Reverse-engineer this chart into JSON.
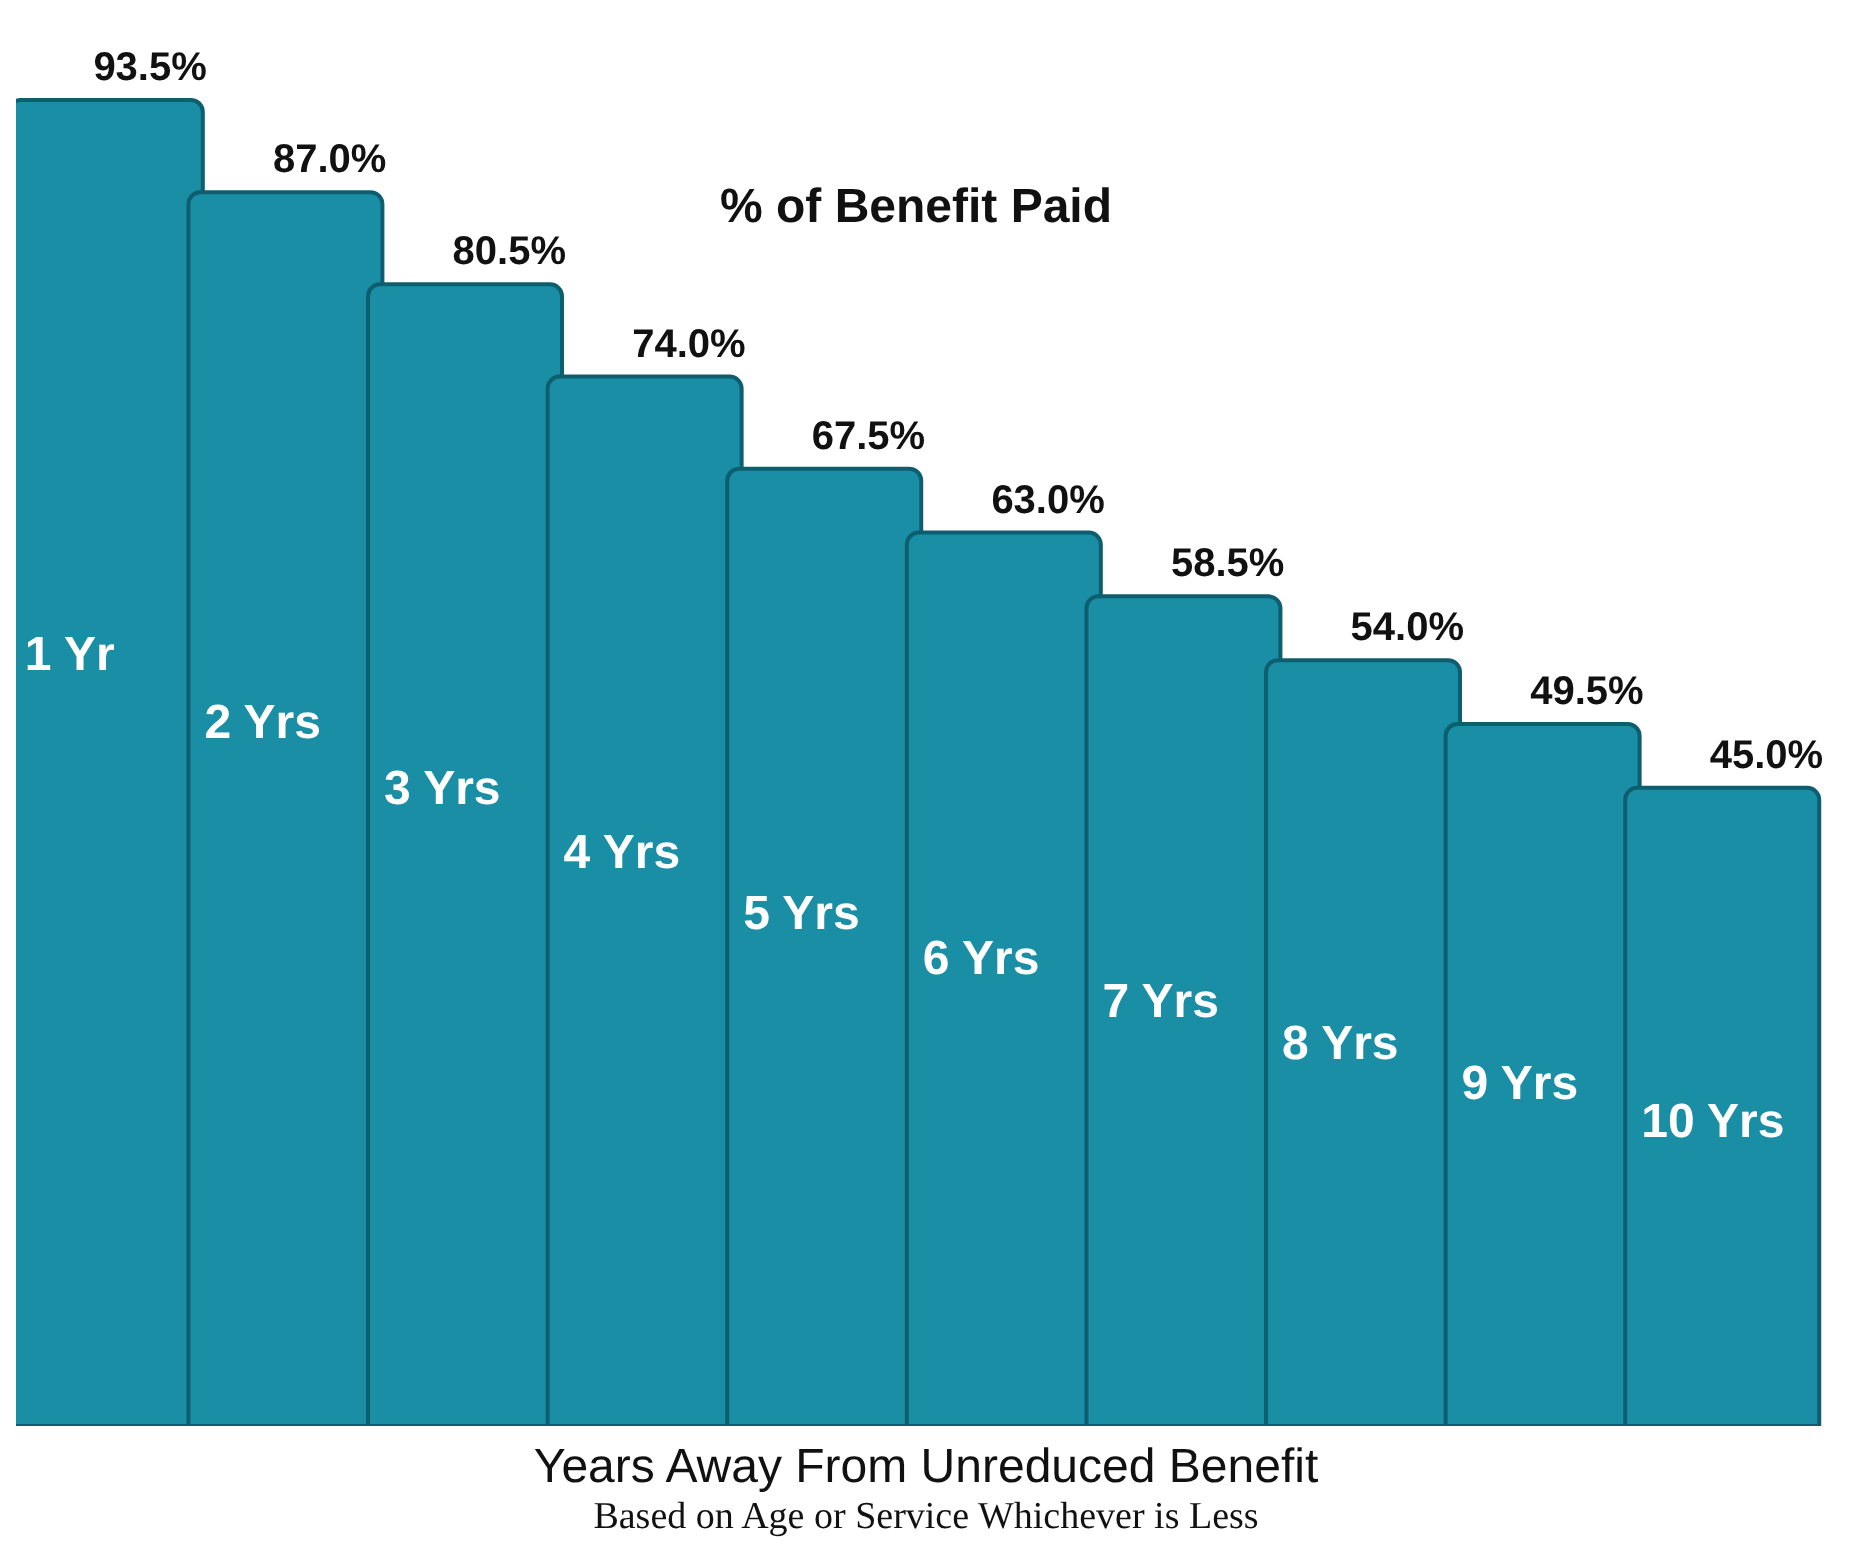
{
  "chart_data": {
    "type": "bar",
    "title": "% of Benefit Paid",
    "xlabel": "Years Away From Unreduced Benefit",
    "annotations": [
      "Based on Age or Service Whichever is Less"
    ],
    "categories": [
      "1 Yr",
      "2 Yrs",
      "3 Yrs",
      "4 Yrs",
      "5 Yrs",
      "6 Yrs",
      "7 Yrs",
      "8 Yrs",
      "9 Yrs",
      "10 Yrs"
    ],
    "values": [
      93.5,
      87.0,
      80.5,
      74.0,
      67.5,
      63.0,
      58.5,
      54.0,
      49.5,
      45.0
    ],
    "value_labels": [
      "93.5%",
      "87.0%",
      "80.5%",
      "74.0%",
      "67.5%",
      "63.0%",
      "58.5%",
      "54.0%",
      "49.5%",
      "45.0%"
    ],
    "color": "#1a8ea5"
  }
}
